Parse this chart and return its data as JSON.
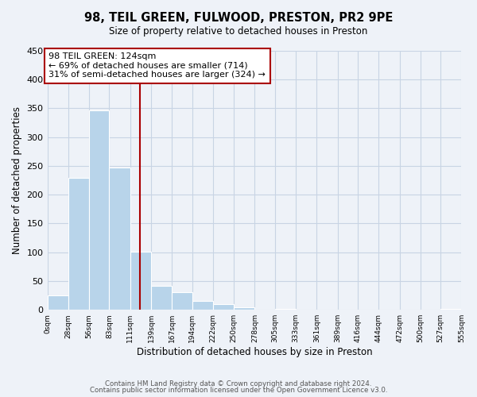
{
  "title": "98, TEIL GREEN, FULWOOD, PRESTON, PR2 9PE",
  "subtitle": "Size of property relative to detached houses in Preston",
  "xlabel": "Distribution of detached houses by size in Preston",
  "ylabel": "Number of detached properties",
  "bar_color": "#b8d4ea",
  "bar_edge_color": "white",
  "grid_color": "#c8d4e4",
  "vline_x": 124,
  "vline_color": "#aa0000",
  "annotation_title": "98 TEIL GREEN: 124sqm",
  "annotation_line1": "← 69% of detached houses are smaller (714)",
  "annotation_line2": "31% of semi-detached houses are larger (324) →",
  "bin_edges": [
    0,
    28,
    56,
    83,
    111,
    139,
    167,
    194,
    222,
    250,
    278,
    305,
    333,
    361,
    389,
    416,
    444,
    472,
    500,
    527,
    555
  ],
  "bin_values": [
    25,
    229,
    346,
    247,
    101,
    41,
    30,
    16,
    10,
    4,
    0,
    1,
    0,
    0,
    0,
    0,
    0,
    0,
    0,
    2
  ],
  "ylim": [
    0,
    450
  ],
  "yticks": [
    0,
    50,
    100,
    150,
    200,
    250,
    300,
    350,
    400,
    450
  ],
  "footer1": "Contains HM Land Registry data © Crown copyright and database right 2024.",
  "footer2": "Contains public sector information licensed under the Open Government Licence v3.0.",
  "background_color": "#eef2f8"
}
